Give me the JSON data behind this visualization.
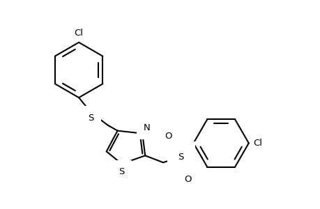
{
  "background_color": "#ffffff",
  "line_color": "#000000",
  "line_width": 1.5,
  "font_size": 9.5,
  "figsize": [
    4.6,
    3.0
  ],
  "dpi": 100,
  "labels": {
    "Cl_top": "Cl",
    "S_thio": "S",
    "N_thz": "N",
    "S_thz": "S",
    "S_sulfonyl": "S",
    "O_top": "O",
    "O_bottom": "O",
    "Cl_right": "Cl"
  }
}
